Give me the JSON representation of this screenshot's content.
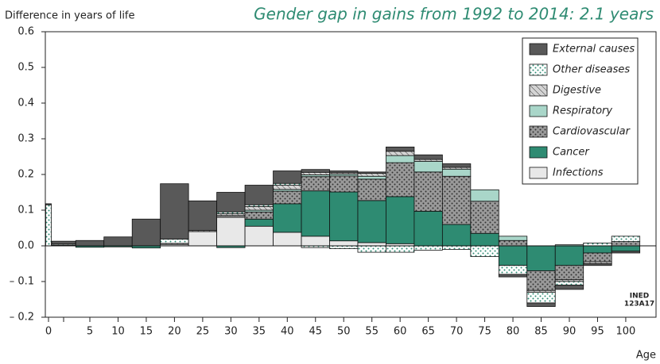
{
  "chart_data": {
    "type": "bar",
    "stacked": true,
    "title": "Gender gap in gains from 1992 to 2014: 2.1 years",
    "y_label": "Difference in years of life",
    "x_label": "Age",
    "annotation": [
      "INED",
      "123A17"
    ],
    "categories": [
      "0",
      null,
      "5",
      "10",
      "15",
      "20",
      "25",
      "30",
      "35",
      "40",
      "45",
      "50",
      "55",
      "60",
      "65",
      "70",
      "75",
      "80",
      "85",
      "90",
      "95",
      "100"
    ],
    "ylim": [
      -0.2,
      0.6
    ],
    "yticks": [
      0.6,
      0.5,
      0.4,
      0.3,
      0.2,
      0.1,
      {
        "value": 0,
        "label": "0.0"
      },
      {
        "value": -0.1,
        "label": "– 0.1"
      },
      {
        "value": -0.2,
        "label": "– 0.2"
      }
    ],
    "legend": "top-right",
    "series": [
      {
        "name": "Infections",
        "color": "#e8e8e8",
        "values": [
          0,
          0.002,
          0,
          0,
          0,
          0.004,
          0.04,
          0.08,
          0.055,
          0.038,
          0.027,
          0.014,
          0.009,
          0.006,
          0,
          0,
          0,
          0,
          0,
          0,
          0,
          0
        ]
      },
      {
        "name": "Cancer",
        "color": "#2e8b72",
        "values": [
          0,
          0,
          -0.004,
          -0.003,
          -0.006,
          0,
          0,
          -0.005,
          0.02,
          0.08,
          0.127,
          0.137,
          0.118,
          0.132,
          0.097,
          0.06,
          0.035,
          -0.055,
          -0.07,
          -0.055,
          -0.02,
          -0.015
        ]
      },
      {
        "name": "Cardiovascular",
        "color": "#9a9a9a",
        "pattern": "dots",
        "values": [
          0,
          0,
          0,
          0,
          0,
          0,
          0,
          0.005,
          0.02,
          0.035,
          0.04,
          0.045,
          0.06,
          0.095,
          0.11,
          0.135,
          0.09,
          0.015,
          -0.055,
          -0.04,
          -0.025,
          0.012
        ]
      },
      {
        "name": "Respiratory",
        "color": "#a9d6c9",
        "values": [
          0,
          0,
          0,
          0,
          0,
          0,
          0,
          0,
          0.005,
          0.005,
          0.005,
          0.005,
          0.008,
          0.02,
          0.03,
          0.02,
          0.032,
          0.012,
          0,
          0.003,
          0,
          0
        ]
      },
      {
        "name": "Digestive",
        "color": "#d4d4d4",
        "pattern": "hatch",
        "values": [
          0,
          0,
          0,
          0,
          0,
          0.003,
          0.003,
          0.005,
          0.01,
          0.012,
          0.007,
          0.004,
          0.008,
          0.012,
          0.005,
          0.005,
          0,
          0,
          -0.005,
          -0.005,
          -0.005,
          0
        ]
      },
      {
        "name": "Other diseases",
        "color": "#ffffff",
        "pattern": "greendots",
        "values": [
          0.115,
          0.003,
          0,
          0,
          0,
          0.012,
          0,
          0.005,
          0.005,
          0.005,
          -0.005,
          -0.008,
          -0.018,
          -0.018,
          -0.012,
          -0.01,
          -0.03,
          -0.025,
          -0.03,
          -0.01,
          0.008,
          0.015
        ]
      },
      {
        "name": "External causes",
        "color": "#595959",
        "values": [
          0.003,
          0.008,
          0.015,
          0.025,
          0.075,
          0.155,
          0.083,
          0.055,
          0.055,
          0.035,
          0.008,
          0.005,
          0.004,
          0.012,
          0.013,
          0.01,
          0,
          -0.007,
          -0.01,
          -0.012,
          -0.005,
          -0.005
        ]
      }
    ]
  }
}
